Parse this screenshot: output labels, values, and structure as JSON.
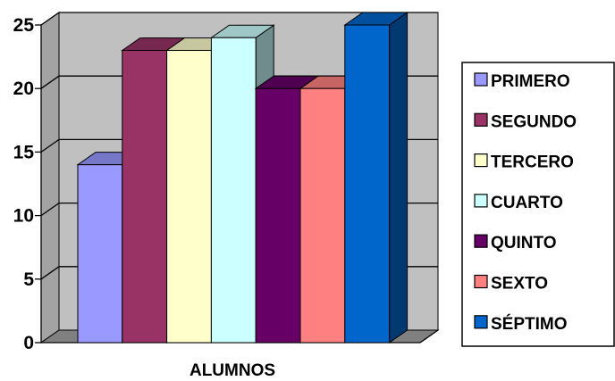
{
  "chart_data": {
    "type": "bar",
    "three_d": true,
    "xlabel": "ALUMNOS",
    "ylim": [
      0,
      25
    ],
    "yticks": [
      0,
      5,
      10,
      15,
      20,
      25
    ],
    "grid": true,
    "legend_position": "right",
    "series": [
      {
        "name": "PRIMERO",
        "values": [
          14
        ],
        "color": "#9999ff"
      },
      {
        "name": "SEGUNDO",
        "values": [
          23
        ],
        "color": "#993366"
      },
      {
        "name": "TERCERO",
        "values": [
          23
        ],
        "color": "#ffffcc"
      },
      {
        "name": "CUARTO",
        "values": [
          24
        ],
        "color": "#ccffff"
      },
      {
        "name": "QUINTO",
        "values": [
          20
        ],
        "color": "#660066"
      },
      {
        "name": "SEXTO",
        "values": [
          20
        ],
        "color": "#ff8080"
      },
      {
        "name": "SÉPTIMO",
        "values": [
          25
        ],
        "color": "#0066cc"
      }
    ],
    "wall_color": "#c0c0c0",
    "floor_color": "#808080"
  }
}
